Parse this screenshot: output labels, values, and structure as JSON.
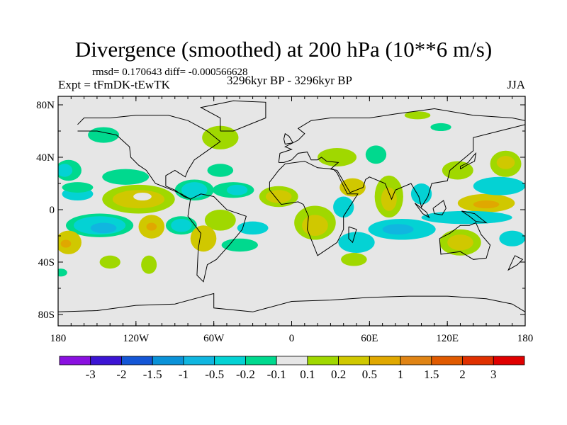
{
  "chart_data": {
    "type": "heatmap",
    "title": "Divergence (smoothed) at 200 hPa (10**6 m/s)",
    "stats": "rmsd= 0.170643 diff= -0.000566628",
    "experiment": "Expt = tFmDK-tEwTK",
    "period": "3296kyr BP - 3296kyr BP",
    "season": "JJA",
    "xlim": [
      -180,
      180
    ],
    "ylim": [
      -90,
      90
    ],
    "x_ticks": [
      {
        "value": -180,
        "label": "180"
      },
      {
        "value": -120,
        "label": "120W"
      },
      {
        "value": -60,
        "label": "60W"
      },
      {
        "value": 0,
        "label": "0"
      },
      {
        "value": 60,
        "label": "60E"
      },
      {
        "value": 120,
        "label": "120E"
      },
      {
        "value": 180,
        "label": "180"
      }
    ],
    "y_ticks": [
      {
        "value": 80,
        "label": "80N"
      },
      {
        "value": 40,
        "label": "40N"
      },
      {
        "value": 0,
        "label": "0"
      },
      {
        "value": -40,
        "label": "40S"
      },
      {
        "value": -80,
        "label": "80S"
      }
    ],
    "colorbar": {
      "colors": [
        "#8a10e0",
        "#3c14d4",
        "#1456d6",
        "#0a92d8",
        "#10b6e0",
        "#04d2d4",
        "#00d98e",
        "#e6e6e6",
        "#a0d800",
        "#d0c800",
        "#e0a800",
        "#e08414",
        "#e05a00",
        "#e03000",
        "#e00000"
      ],
      "labels": [
        "-3",
        "-2",
        "-1.5",
        "-1",
        "-0.5",
        "-0.2",
        "-0.1",
        "0.1",
        "0.2",
        "0.5",
        "1",
        "1.5",
        "2",
        "3"
      ]
    },
    "background_color": "#e6e6e6",
    "anomaly_regions": [
      {
        "lon": -55,
        "lat": 55,
        "rx": 14,
        "ry": 9,
        "level": 8
      },
      {
        "lon": -145,
        "lat": 57,
        "rx": 12,
        "ry": 6,
        "level": 6
      },
      {
        "lon": -128,
        "lat": 25,
        "rx": 18,
        "ry": 6,
        "level": 6
      },
      {
        "lon": -172,
        "lat": 30,
        "rx": 10,
        "ry": 8,
        "level": 6
      },
      {
        "lon": -175,
        "lat": 30,
        "rx": 6,
        "ry": 5,
        "level": 5
      },
      {
        "lon": -118,
        "lat": 8,
        "rx": 28,
        "ry": 11,
        "level": 8
      },
      {
        "lon": -118,
        "lat": 8,
        "rx": 20,
        "ry": 7,
        "level": 9
      },
      {
        "lon": -115,
        "lat": 10,
        "rx": 7,
        "ry": 3,
        "level": 7
      },
      {
        "lon": -165,
        "lat": 12,
        "rx": 12,
        "ry": 5,
        "level": 5
      },
      {
        "lon": -148,
        "lat": -12,
        "rx": 26,
        "ry": 9,
        "level": 6
      },
      {
        "lon": -148,
        "lat": -12,
        "rx": 20,
        "ry": 7,
        "level": 5
      },
      {
        "lon": -145,
        "lat": -14,
        "rx": 10,
        "ry": 4,
        "level": 4
      },
      {
        "lon": -108,
        "lat": -13,
        "rx": 10,
        "ry": 9,
        "level": 9
      },
      {
        "lon": -108,
        "lat": -13,
        "rx": 4,
        "ry": 3,
        "level": 10
      },
      {
        "lon": -85,
        "lat": -12,
        "rx": 12,
        "ry": 7,
        "level": 6
      },
      {
        "lon": -85,
        "lat": -12,
        "rx": 8,
        "ry": 5,
        "level": 5
      },
      {
        "lon": -172,
        "lat": -25,
        "rx": 10,
        "ry": 9,
        "level": 9
      },
      {
        "lon": -174,
        "lat": -26,
        "rx": 4,
        "ry": 3,
        "level": 10
      },
      {
        "lon": -75,
        "lat": 15,
        "rx": 15,
        "ry": 8,
        "level": 6
      },
      {
        "lon": -75,
        "lat": 15,
        "rx": 10,
        "ry": 6,
        "level": 5
      },
      {
        "lon": -45,
        "lat": 15,
        "rx": 16,
        "ry": 6,
        "level": 6
      },
      {
        "lon": -42,
        "lat": 15,
        "rx": 8,
        "ry": 4,
        "level": 5
      },
      {
        "lon": -55,
        "lat": 30,
        "rx": 10,
        "ry": 5,
        "level": 6
      },
      {
        "lon": -10,
        "lat": 10,
        "rx": 15,
        "ry": 8,
        "level": 8
      },
      {
        "lon": -10,
        "lat": 10,
        "rx": 10,
        "ry": 5,
        "level": 9
      },
      {
        "lon": -55,
        "lat": -8,
        "rx": 12,
        "ry": 8,
        "level": 8
      },
      {
        "lon": -68,
        "lat": -22,
        "rx": 10,
        "ry": 10,
        "level": 9
      },
      {
        "lon": -30,
        "lat": -14,
        "rx": 12,
        "ry": 5,
        "level": 5
      },
      {
        "lon": -40,
        "lat": -27,
        "rx": 14,
        "ry": 5,
        "level": 6
      },
      {
        "lon": 18,
        "lat": -10,
        "rx": 16,
        "ry": 13,
        "level": 8
      },
      {
        "lon": 18,
        "lat": -12,
        "rx": 10,
        "ry": 8,
        "level": 9
      },
      {
        "lon": 40,
        "lat": 2,
        "rx": 8,
        "ry": 8,
        "level": 5
      },
      {
        "lon": 50,
        "lat": -25,
        "rx": 14,
        "ry": 8,
        "level": 5
      },
      {
        "lon": 85,
        "lat": -15,
        "rx": 26,
        "ry": 8,
        "level": 5
      },
      {
        "lon": 82,
        "lat": -15,
        "rx": 12,
        "ry": 4,
        "level": 4
      },
      {
        "lon": 75,
        "lat": 10,
        "rx": 11,
        "ry": 16,
        "level": 8
      },
      {
        "lon": 75,
        "lat": 8,
        "rx": 6,
        "ry": 9,
        "level": 9
      },
      {
        "lon": 47,
        "lat": 17,
        "rx": 10,
        "ry": 7,
        "level": 9
      },
      {
        "lon": 35,
        "lat": 40,
        "rx": 15,
        "ry": 7,
        "level": 8
      },
      {
        "lon": 65,
        "lat": 42,
        "rx": 8,
        "ry": 7,
        "level": 6
      },
      {
        "lon": 100,
        "lat": 12,
        "rx": 8,
        "ry": 8,
        "level": 5
      },
      {
        "lon": 150,
        "lat": 5,
        "rx": 22,
        "ry": 7,
        "level": 9
      },
      {
        "lon": 150,
        "lat": 4,
        "rx": 10,
        "ry": 3,
        "level": 10
      },
      {
        "lon": 135,
        "lat": -6,
        "rx": 35,
        "ry": 5,
        "level": 5
      },
      {
        "lon": 130,
        "lat": -25,
        "rx": 16,
        "ry": 10,
        "level": 8
      },
      {
        "lon": 130,
        "lat": -25,
        "rx": 10,
        "ry": 6,
        "level": 9
      },
      {
        "lon": 128,
        "lat": 30,
        "rx": 12,
        "ry": 7,
        "level": 8
      },
      {
        "lon": 165,
        "lat": 35,
        "rx": 12,
        "ry": 10,
        "level": 8
      },
      {
        "lon": 165,
        "lat": 36,
        "rx": 7,
        "ry": 5,
        "level": 9
      },
      {
        "lon": 160,
        "lat": 18,
        "rx": 20,
        "ry": 7,
        "level": 5
      },
      {
        "lon": 170,
        "lat": -22,
        "rx": 10,
        "ry": 6,
        "level": 5
      },
      {
        "lon": -140,
        "lat": -40,
        "rx": 8,
        "ry": 5,
        "level": 8
      },
      {
        "lon": -110,
        "lat": -42,
        "rx": 6,
        "ry": 7,
        "level": 8
      },
      {
        "lon": 48,
        "lat": -38,
        "rx": 10,
        "ry": 5,
        "level": 8
      },
      {
        "lon": 97,
        "lat": 72,
        "rx": 10,
        "ry": 3,
        "level": 8
      },
      {
        "lon": 115,
        "lat": 63,
        "rx": 8,
        "ry": 3,
        "level": 6
      },
      {
        "lon": -165,
        "lat": 17,
        "rx": 12,
        "ry": 4,
        "level": 6
      },
      {
        "lon": -178,
        "lat": -48,
        "rx": 5,
        "ry": 3,
        "level": 6
      }
    ]
  }
}
